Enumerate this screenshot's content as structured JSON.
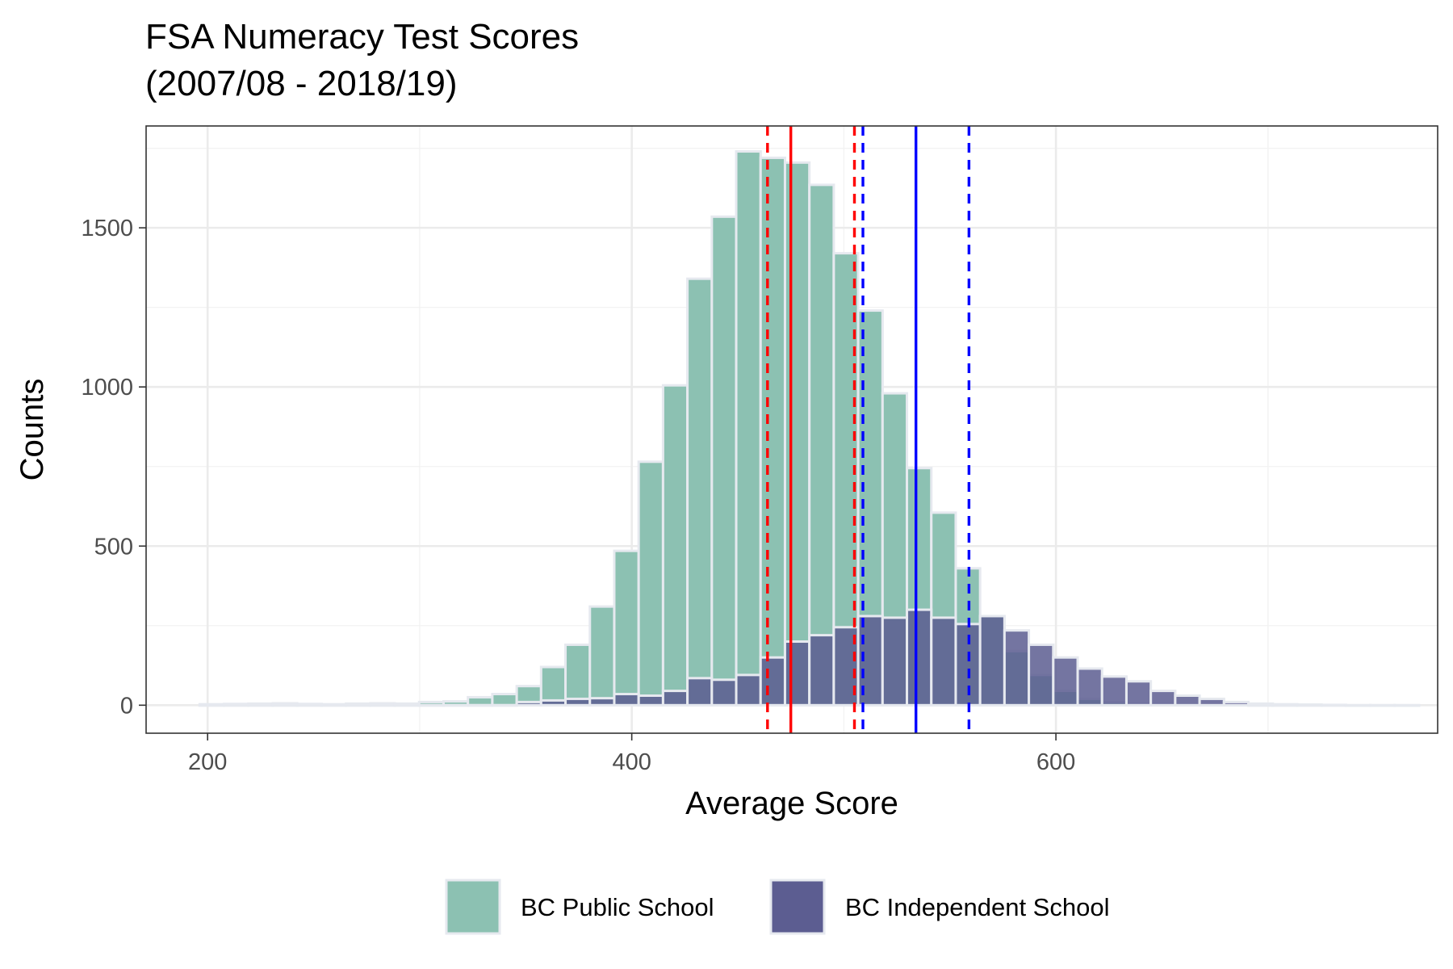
{
  "chart_data": {
    "type": "histogram",
    "title_lines": [
      "FSA Numeracy Test Scores",
      "(2007/08 - 2018/19)"
    ],
    "xlabel": "Average Score",
    "ylabel": "Counts",
    "xlim": [
      171,
      780
    ],
    "ylim": [
      -88,
      1820
    ],
    "x_ticks": [
      200,
      400,
      600
    ],
    "y_ticks": [
      0,
      500,
      1000,
      1500
    ],
    "x_tick_labels": [
      "200",
      "400",
      "600"
    ],
    "y_tick_labels": [
      "0",
      "500",
      "1000",
      "1500"
    ],
    "grid": true,
    "legend_position": "bottom",
    "bin_width": 11.5,
    "bin_centers": [
      202.0,
      213.5,
      225.0,
      236.5,
      248.0,
      259.5,
      271.0,
      282.5,
      294.0,
      305.5,
      317.0,
      328.5,
      340.0,
      351.5,
      363.0,
      374.5,
      386.0,
      397.5,
      409.0,
      420.5,
      432.0,
      443.5,
      455.0,
      466.5,
      478.0,
      489.5,
      501.0,
      512.5,
      524.0,
      535.5,
      547.0,
      558.5,
      570.0,
      581.5,
      593.0,
      604.5,
      616.0,
      627.5,
      639.0,
      650.5,
      662.0,
      673.5,
      685.0,
      696.5,
      708.0,
      719.5,
      731.0,
      742.5,
      754.0,
      765.5
    ],
    "series": [
      {
        "name": "BC Public School",
        "color": "#8cc1b2",
        "values": [
          3,
          4,
          5,
          6,
          4,
          3,
          5,
          6,
          5,
          10,
          12,
          25,
          35,
          60,
          120,
          190,
          310,
          485,
          765,
          1005,
          1340,
          1535,
          1740,
          1720,
          1705,
          1635,
          1420,
          1240,
          980,
          745,
          605,
          430,
          280,
          170,
          95,
          45,
          20,
          10,
          5,
          3,
          2,
          1,
          1,
          0,
          0,
          0,
          0,
          0,
          0,
          0
        ]
      },
      {
        "name": "BC Independent School",
        "color": "#5c5d91",
        "values": [
          0,
          0,
          0,
          0,
          0,
          0,
          0,
          0,
          0,
          0,
          0,
          0,
          0,
          10,
          15,
          20,
          22,
          35,
          30,
          45,
          85,
          80,
          95,
          150,
          200,
          220,
          245,
          280,
          275,
          300,
          275,
          255,
          280,
          235,
          190,
          150,
          115,
          90,
          75,
          45,
          30,
          20,
          10,
          5,
          3,
          2,
          1,
          0,
          0,
          0
        ]
      }
    ],
    "reference_lines": [
      {
        "series": "BC Public School",
        "x": 475,
        "color": "#ff0000",
        "style": "solid"
      },
      {
        "series": "BC Public School",
        "x": 464,
        "color": "#ff0000",
        "style": "dashed"
      },
      {
        "series": "BC Public School",
        "x": 505,
        "color": "#ff0000",
        "style": "dashed"
      },
      {
        "series": "BC Independent School",
        "x": 534,
        "color": "#0000ff",
        "style": "solid"
      },
      {
        "series": "BC Independent School",
        "x": 509,
        "color": "#0000ff",
        "style": "dashed"
      },
      {
        "series": "BC Independent School",
        "x": 559,
        "color": "#0000ff",
        "style": "dashed"
      }
    ],
    "colors": {
      "panel_background": "#ffffff",
      "grid_major": "#ebebeb",
      "grid_minor": "#f2f2f2",
      "panel_border": "#333333",
      "bar_outline": "#e6e9ef"
    }
  }
}
